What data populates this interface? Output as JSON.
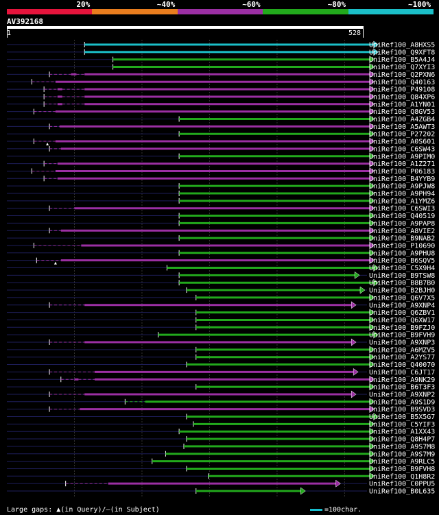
{
  "legend": {
    "segments": [
      {
        "label": "20%",
        "color": "#e6143c"
      },
      {
        "label": "~40%",
        "color": "#e87d1e"
      },
      {
        "label": "~60%",
        "color": "#9b2fa3"
      },
      {
        "label": "~80%",
        "color": "#22a91c"
      },
      {
        "label": "~100%",
        "color": "#1bbfc8"
      }
    ]
  },
  "query": {
    "id": "AV392168",
    "start_label": "1",
    "end_label": "528",
    "length": 528
  },
  "colors": {
    "gridline": "#333333",
    "baseline": "#1e1e5a",
    "gap_marker": "#ffffff"
  },
  "chart_data": {
    "type": "alignment",
    "query_length": 528,
    "hits": [
      {
        "name": "UniRef100_A8HXS5",
        "start": 115,
        "end": 548,
        "color": "#1bbfc8",
        "gaps": []
      },
      {
        "name": "UniRef100_Q9XFT8",
        "start": 115,
        "end": 548,
        "color": "#1bbfc8",
        "gaps": []
      },
      {
        "name": "UniRef100_B5A4J4",
        "start": 157,
        "end": 542,
        "color": "#22a91c",
        "gaps": []
      },
      {
        "name": "UniRef100_Q7XYI3",
        "start": 157,
        "end": 542,
        "color": "#22a91c",
        "gaps": []
      },
      {
        "name": "UniRef100_Q2PXN6",
        "start": 63,
        "end": 542,
        "color": "#9b2fa3",
        "gaps": [
          [
            63,
            95
          ],
          [
            103,
            115
          ]
        ]
      },
      {
        "name": "UniRef100_Q40163",
        "start": 37,
        "end": 542,
        "color": "#9b2fa3",
        "gaps": [
          [
            37,
            72
          ]
        ]
      },
      {
        "name": "UniRef100_P49108",
        "start": 55,
        "end": 542,
        "color": "#9b2fa3",
        "gaps": [
          [
            55,
            75
          ],
          [
            82,
            115
          ]
        ]
      },
      {
        "name": "UniRef100_Q84XP6",
        "start": 55,
        "end": 542,
        "color": "#9b2fa3",
        "gaps": [
          [
            55,
            75
          ],
          [
            82,
            115
          ]
        ]
      },
      {
        "name": "UniRef100_A1YN01",
        "start": 55,
        "end": 542,
        "color": "#9b2fa3",
        "gaps": [
          [
            55,
            75
          ],
          [
            82,
            115
          ]
        ]
      },
      {
        "name": "UniRef100_Q8GV53",
        "start": 40,
        "end": 542,
        "color": "#9b2fa3",
        "gaps": [
          [
            40,
            72
          ]
        ]
      },
      {
        "name": "UniRef100_A4ZGB4",
        "start": 255,
        "end": 542,
        "color": "#22a91c",
        "gaps": []
      },
      {
        "name": "UniRef100_A5AWT3",
        "start": 63,
        "end": 542,
        "color": "#9b2fa3",
        "gaps": [
          [
            63,
            78
          ]
        ]
      },
      {
        "name": "UniRef100_P27202",
        "start": 255,
        "end": 542,
        "color": "#22a91c",
        "gaps": []
      },
      {
        "name": "UniRef100_A0S601",
        "start": 40,
        "end": 542,
        "color": "#9b2fa3",
        "gaps": [
          [
            40,
            72
          ]
        ],
        "query_gaps": [
          60
        ]
      },
      {
        "name": "UniRef100_C6SW43",
        "start": 63,
        "end": 542,
        "color": "#9b2fa3",
        "gaps": [
          [
            63,
            80
          ]
        ]
      },
      {
        "name": "UniRef100_A9PIM0",
        "start": 255,
        "end": 542,
        "color": "#22a91c",
        "gaps": []
      },
      {
        "name": "UniRef100_A1Z271",
        "start": 55,
        "end": 542,
        "color": "#9b2fa3",
        "gaps": [
          [
            55,
            75
          ]
        ]
      },
      {
        "name": "UniRef100_P06183",
        "start": 37,
        "end": 542,
        "color": "#9b2fa3",
        "gaps": [
          [
            37,
            72
          ]
        ]
      },
      {
        "name": "UniRef100_B4YYB9",
        "start": 55,
        "end": 542,
        "color": "#9b2fa3",
        "gaps": [
          [
            55,
            75
          ]
        ]
      },
      {
        "name": "UniRef100_A9PJW8",
        "start": 255,
        "end": 542,
        "color": "#22a91c",
        "gaps": []
      },
      {
        "name": "UniRef100_A9PH94",
        "start": 255,
        "end": 542,
        "color": "#22a91c",
        "gaps": []
      },
      {
        "name": "UniRef100_A1YMZ6",
        "start": 255,
        "end": 542,
        "color": "#22a91c",
        "gaps": []
      },
      {
        "name": "UniRef100_C6SWI3",
        "start": 63,
        "end": 542,
        "color": "#9b2fa3",
        "gaps": [
          [
            63,
            100
          ]
        ]
      },
      {
        "name": "UniRef100_Q40519",
        "start": 255,
        "end": 542,
        "color": "#22a91c",
        "gaps": []
      },
      {
        "name": "UniRef100_A9PAP8",
        "start": 255,
        "end": 542,
        "color": "#22a91c",
        "gaps": []
      },
      {
        "name": "UniRef100_A8VIE2",
        "start": 63,
        "end": 542,
        "color": "#9b2fa3",
        "gaps": [
          [
            63,
            80
          ]
        ]
      },
      {
        "name": "UniRef100_B9NAB2",
        "start": 255,
        "end": 542,
        "color": "#22a91c",
        "gaps": []
      },
      {
        "name": "UniRef100_P10690",
        "start": 40,
        "end": 542,
        "color": "#9b2fa3",
        "gaps": [
          [
            40,
            110
          ]
        ]
      },
      {
        "name": "UniRef100_A9PHU8",
        "start": 255,
        "end": 542,
        "color": "#22a91c",
        "gaps": []
      },
      {
        "name": "UniRef100_B6SQV5",
        "start": 44,
        "end": 542,
        "color": "#9b2fa3",
        "gaps": [
          [
            44,
            80
          ]
        ],
        "query_gaps": [
          72
        ]
      },
      {
        "name": "UniRef100_C5X9H4",
        "start": 237,
        "end": 548,
        "color": "#22a91c",
        "gaps": []
      },
      {
        "name": "UniRef100_B9TSW8",
        "start": 255,
        "end": 520,
        "color": "#22a91c",
        "gaps": []
      },
      {
        "name": "UniRef100_B8B7B0",
        "start": 255,
        "end": 548,
        "color": "#22a91c",
        "gaps": []
      },
      {
        "name": "UniRef100_B2BJH0",
        "start": 266,
        "end": 528,
        "color": "#22a91c",
        "gaps": []
      },
      {
        "name": "UniRef100_Q6V7X5",
        "start": 280,
        "end": 542,
        "color": "#22a91c",
        "gaps": []
      },
      {
        "name": "UniRef100_A9XNP4",
        "start": 63,
        "end": 515,
        "color": "#9b2fa3",
        "gaps": [
          [
            63,
            115
          ]
        ]
      },
      {
        "name": "UniRef100_Q6ZBV1",
        "start": 280,
        "end": 542,
        "color": "#22a91c",
        "gaps": []
      },
      {
        "name": "UniRef100_Q6XW17",
        "start": 280,
        "end": 542,
        "color": "#22a91c",
        "gaps": []
      },
      {
        "name": "UniRef100_B9FZJ0",
        "start": 280,
        "end": 542,
        "color": "#22a91c",
        "gaps": []
      },
      {
        "name": "UniRef100_B9FVH9",
        "start": 224,
        "end": 548,
        "color": "#22a91c",
        "gaps": []
      },
      {
        "name": "UniRef100_A9XNP3",
        "start": 63,
        "end": 515,
        "color": "#9b2fa3",
        "gaps": [
          [
            63,
            115
          ]
        ]
      },
      {
        "name": "UniRef100_A6MZV5",
        "start": 280,
        "end": 542,
        "color": "#22a91c",
        "gaps": []
      },
      {
        "name": "UniRef100_A2YS77",
        "start": 280,
        "end": 542,
        "color": "#22a91c",
        "gaps": []
      },
      {
        "name": "UniRef100_Q40070",
        "start": 266,
        "end": 542,
        "color": "#22a91c",
        "gaps": []
      },
      {
        "name": "UniRef100_C6JT17",
        "start": 63,
        "end": 518,
        "color": "#9b2fa3",
        "gaps": [
          [
            63,
            130
          ]
        ]
      },
      {
        "name": "UniRef100_A9NK29",
        "start": 80,
        "end": 542,
        "color": "#9b2fa3",
        "gaps": [
          [
            80,
            100
          ],
          [
            106,
            130
          ]
        ]
      },
      {
        "name": "UniRef100_B6T3F3",
        "start": 280,
        "end": 542,
        "color": "#22a91c",
        "gaps": []
      },
      {
        "name": "UniRef100_A9XNP2",
        "start": 63,
        "end": 515,
        "color": "#9b2fa3",
        "gaps": [
          [
            63,
            115
          ]
        ]
      },
      {
        "name": "UniRef100_A9S1D9",
        "start": 175,
        "end": 542,
        "color": "#22a91c",
        "gaps": [
          [
            175,
            205
          ]
        ]
      },
      {
        "name": "UniRef100_B9SVD3",
        "start": 63,
        "end": 542,
        "color": "#9b2fa3",
        "gaps": [
          [
            63,
            108
          ]
        ]
      },
      {
        "name": "UniRef100_B5X5G7",
        "start": 266,
        "end": 548,
        "color": "#22a91c",
        "gaps": []
      },
      {
        "name": "UniRef100_C5YIF3",
        "start": 276,
        "end": 542,
        "color": "#22a91c",
        "gaps": []
      },
      {
        "name": "UniRef100_A1XX43",
        "start": 255,
        "end": 542,
        "color": "#22a91c",
        "gaps": []
      },
      {
        "name": "UniRef100_Q8H4P7",
        "start": 266,
        "end": 542,
        "color": "#22a91c",
        "gaps": []
      },
      {
        "name": "UniRef100_A9S7M8",
        "start": 262,
        "end": 542,
        "color": "#22a91c",
        "gaps": []
      },
      {
        "name": "UniRef100_A9S7M9",
        "start": 235,
        "end": 542,
        "color": "#22a91c",
        "gaps": []
      },
      {
        "name": "UniRef100_A9RLC5",
        "start": 215,
        "end": 542,
        "color": "#22a91c",
        "gaps": []
      },
      {
        "name": "UniRef100_B9FVH8",
        "start": 266,
        "end": 542,
        "color": "#22a91c",
        "gaps": []
      },
      {
        "name": "UniRef100_Q1H8R2",
        "start": 298,
        "end": 542,
        "color": "#22a91c",
        "gaps": []
      },
      {
        "name": "UniRef100_C0PPU5",
        "start": 87,
        "end": 492,
        "color": "#9b2fa3",
        "gaps": [
          [
            87,
            150
          ]
        ]
      },
      {
        "name": "UniRef100_B0L635",
        "start": 280,
        "end": 440,
        "color": "#22a91c",
        "gaps": []
      }
    ]
  },
  "footer": {
    "large_gaps_label": "Large gaps:",
    "query_marker": "▲",
    "in_query": "(in Query)/",
    "subject_marker": "–",
    "in_subject": "(in Subject)",
    "scale_text": "=100char."
  }
}
